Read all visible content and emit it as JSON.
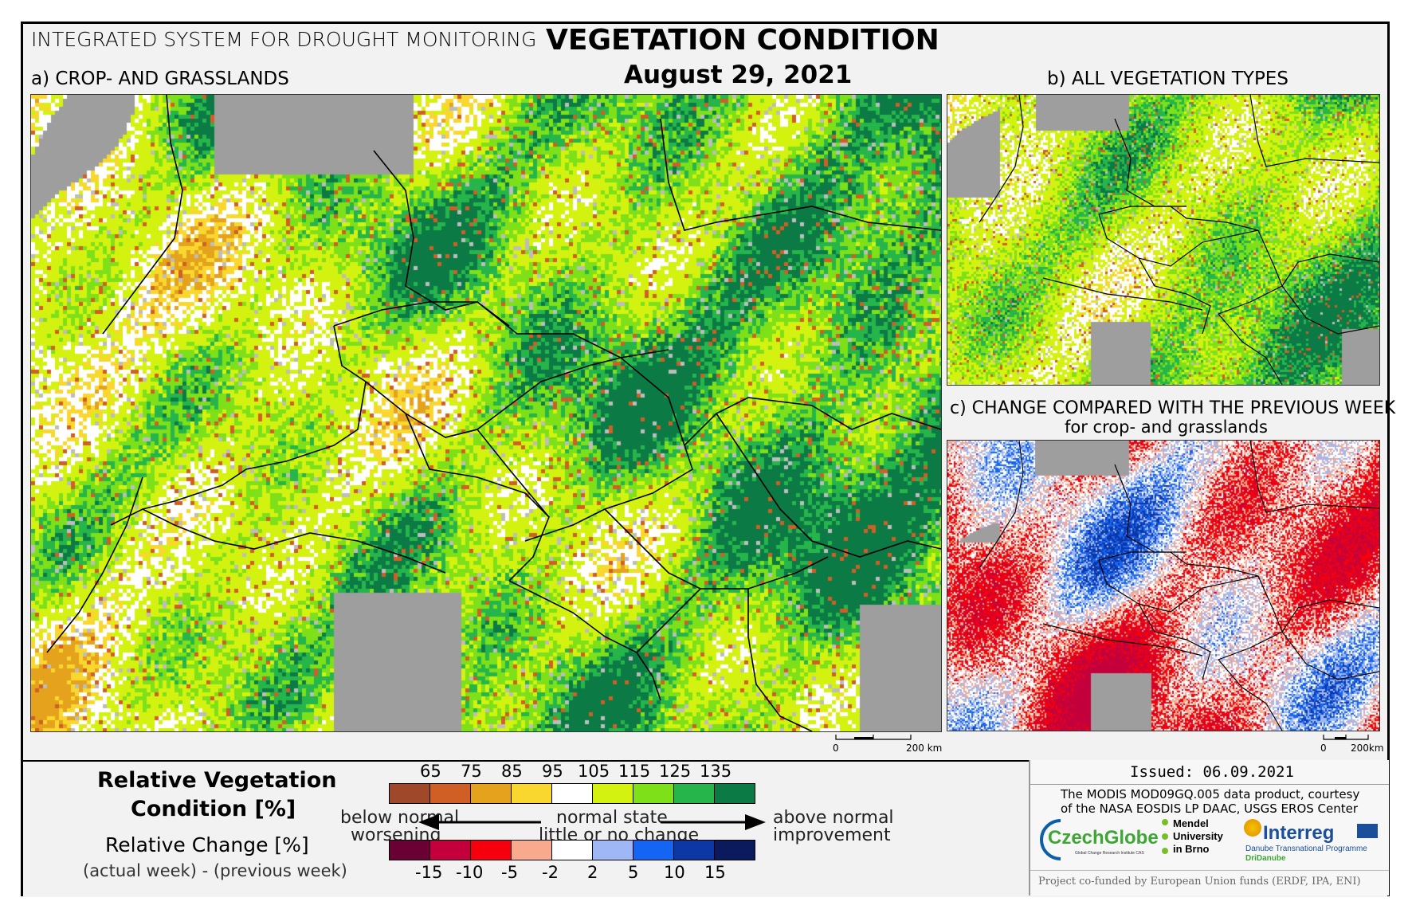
{
  "header": {
    "system_title": "INTEGRATED SYSTEM FOR DROUGHT MONITORING",
    "title": "VEGETATION CONDITION",
    "date": "August 29, 2021"
  },
  "panels": {
    "a_label": "a) CROP- AND GRASSLANDS",
    "b_label": "b) ALL VEGETATION TYPES",
    "c_label": "c) CHANGE COMPARED WITH THE PREVIOUS WEEK",
    "c_sublabel": "for crop- and grasslands"
  },
  "scalebars": {
    "a": {
      "zero": "0",
      "distance": "200 km"
    },
    "c": {
      "zero": "0",
      "distance": "200km"
    }
  },
  "legend": {
    "condition_title_line1": "Relative Vegetation",
    "condition_title_line2": "Condition [%]",
    "change_title": "Relative Change [%]",
    "change_formula": "(actual week) - (previous week)",
    "condition_ticks": [
      "65",
      "75",
      "85",
      "95",
      "105",
      "115",
      "125",
      "135"
    ],
    "condition_colors": [
      "#a0482a",
      "#cf5f25",
      "#e4a21d",
      "#f9d72e",
      "#ffffff",
      "#d4f20f",
      "#7ee019",
      "#25b54a",
      "#0c7a45"
    ],
    "change_ticks": [
      "-15",
      "-10",
      "-5",
      "-2",
      "2",
      "5",
      "10",
      "15"
    ],
    "change_colors": [
      "#6b0034",
      "#c4003c",
      "#f5000c",
      "#f9a98d",
      "#ffffff",
      "#a0b7f5",
      "#1565f5",
      "#0d37a5",
      "#0a1a5c"
    ],
    "left_top": "below normal",
    "left_bottom": "worsening",
    "mid_top": "normal state",
    "mid_bottom": "little or no change",
    "right_top": "above normal",
    "right_bottom": "improvement"
  },
  "credits": {
    "issued": "Issued: 06.09.2021",
    "source_line1": "The MODIS MOD09GQ.005 data product, courtesy",
    "source_line2": "of the NASA EOSDIS LP DAAC, USGS EROS Center",
    "logo_czechglobe": "CzechGlobe",
    "logo_czechglobe_sub": "Global Change Research Institute CAS",
    "logo_mendel_1": "Mendel",
    "logo_mendel_2": "University",
    "logo_mendel_3": "in Brno",
    "logo_interreg": "Interreg",
    "logo_interreg_sub1": "Danube Transnational Programme",
    "logo_interreg_sub2": "DriDanube",
    "funding": "Project co-funded by European Union funds (ERDF, IPA, ENI)"
  }
}
